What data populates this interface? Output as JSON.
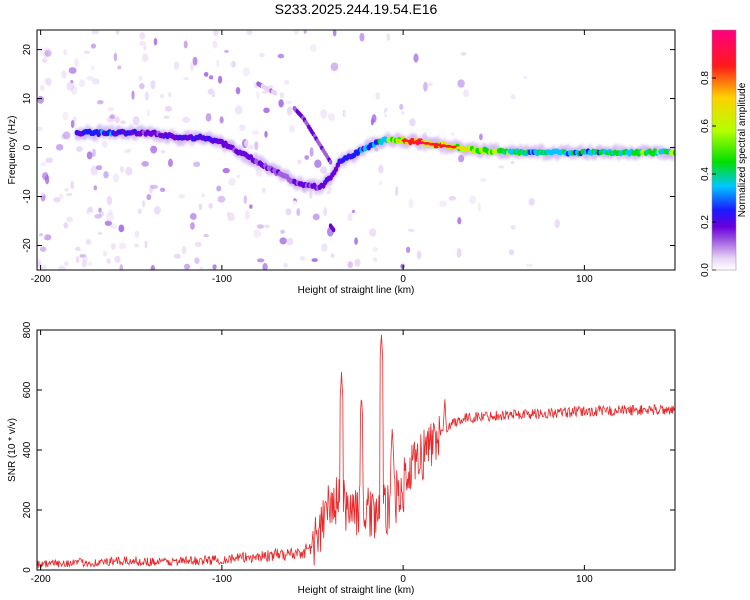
{
  "figure_title": "S233.2025.244.19.54.E16",
  "chart_data": [
    {
      "type": "heatmap",
      "title": "S233.2025.244.19.54.E16",
      "xlabel": "Height of straight line (km)",
      "ylabel": "Frequency (Hz)",
      "xlim": [
        -202,
        150
      ],
      "ylim": [
        -25,
        24
      ],
      "x_ticks": [
        -200,
        -100,
        0,
        100
      ],
      "x_tick_labels": [
        "-200",
        "-100",
        "0",
        "100"
      ],
      "y_ticks": [
        20,
        10,
        0,
        -10,
        -20
      ],
      "y_tick_labels": [
        "20",
        "10",
        "0",
        "-10",
        "-20"
      ],
      "colorbar": {
        "label": "Normalized spectral amplitude",
        "range": [
          0,
          1
        ],
        "ticks": [
          0.0,
          0.2,
          0.4,
          0.6,
          0.8
        ],
        "tick_labels": [
          "0.0",
          "0.2",
          "0.4",
          "0.6",
          "0.8"
        ],
        "colormap": [
          "#ffffff",
          "#e6d2f5",
          "#a060e0",
          "#6a00dc",
          "#1a1aff",
          "#00c8ff",
          "#00e000",
          "#b4ff00",
          "#ffd000",
          "#ff1a1a",
          "#ff0080"
        ]
      },
      "ridge": {
        "x": [
          -180,
          -160,
          -140,
          -120,
          -110,
          -100,
          -90,
          -80,
          -70,
          -60,
          -50,
          -45,
          -40,
          -35,
          -30,
          -25,
          -20,
          -15,
          -10,
          -5,
          0,
          10,
          20,
          30,
          40,
          60,
          80,
          100,
          120,
          150
        ],
        "y": [
          3,
          3,
          3,
          2,
          2,
          1,
          -1,
          -3,
          -5,
          -7,
          -8,
          -8,
          -6,
          -3,
          -2,
          -1,
          0,
          1,
          1.5,
          1.5,
          1.5,
          1,
          0.5,
          0,
          -0.5,
          -1,
          -1,
          -1,
          -1,
          -1
        ],
        "amplitude": [
          0.35,
          0.45,
          0.3,
          0.35,
          0.4,
          0.3,
          0.3,
          0.3,
          0.25,
          0.25,
          0.3,
          0.3,
          0.35,
          0.35,
          0.4,
          0.45,
          0.45,
          0.5,
          0.6,
          0.7,
          0.8,
          0.9,
          0.85,
          0.8,
          0.7,
          0.6,
          0.55,
          0.55,
          0.6,
          0.65
        ]
      },
      "branches": [
        {
          "x": [
            -60,
            -55,
            -50,
            -45,
            -40
          ],
          "y": [
            8,
            6,
            3,
            0,
            -3
          ],
          "amplitude": 0.25
        },
        {
          "x": [
            -80,
            -75,
            -70
          ],
          "y": [
            13,
            12,
            11
          ],
          "amplitude": 0.15
        },
        {
          "x": [
            -40,
            -38
          ],
          "y": [
            -16,
            -17
          ],
          "amplitude": 0.3
        }
      ]
    },
    {
      "type": "line",
      "xlabel": "Height of straight line (km)",
      "ylabel": "SNR (10 * v/v)",
      "xlim": [
        -202,
        150
      ],
      "ylim": [
        0,
        800
      ],
      "x_ticks": [
        -200,
        -100,
        0,
        100
      ],
      "x_tick_labels": [
        "-200",
        "-100",
        "0",
        "100"
      ],
      "y_ticks": [
        0,
        200,
        400,
        600,
        800
      ],
      "y_tick_labels": [
        "0",
        "200",
        "400",
        "600",
        "800"
      ],
      "line_color": "#e8282a",
      "series": [
        {
          "name": "SNR",
          "x": [
            -202,
            -190,
            -180,
            -170,
            -160,
            -150,
            -140,
            -130,
            -120,
            -110,
            -100,
            -90,
            -80,
            -70,
            -60,
            -55,
            -50,
            -45,
            -40,
            -35,
            -30,
            -25,
            -20,
            -15,
            -10,
            -5,
            0,
            5,
            10,
            15,
            20,
            25,
            30,
            35,
            40,
            45,
            50,
            60,
            70,
            80,
            90,
            100,
            110,
            120,
            130,
            140,
            150
          ],
          "y": [
            20,
            22,
            25,
            24,
            28,
            30,
            28,
            27,
            30,
            32,
            35,
            40,
            45,
            50,
            55,
            60,
            80,
            150,
            220,
            230,
            210,
            200,
            190,
            195,
            200,
            230,
            280,
            330,
            380,
            420,
            460,
            480,
            500,
            505,
            510,
            512,
            515,
            518,
            520,
            522,
            525,
            528,
            530,
            532,
            533,
            534,
            535
          ],
          "spikes": [
            {
              "x": -34,
              "y": 660
            },
            {
              "x": -23,
              "y": 585
            },
            {
              "x": -12,
              "y": 790
            },
            {
              "x": -6,
              "y": 470
            },
            {
              "x": 23,
              "y": 575
            }
          ]
        }
      ]
    }
  ]
}
